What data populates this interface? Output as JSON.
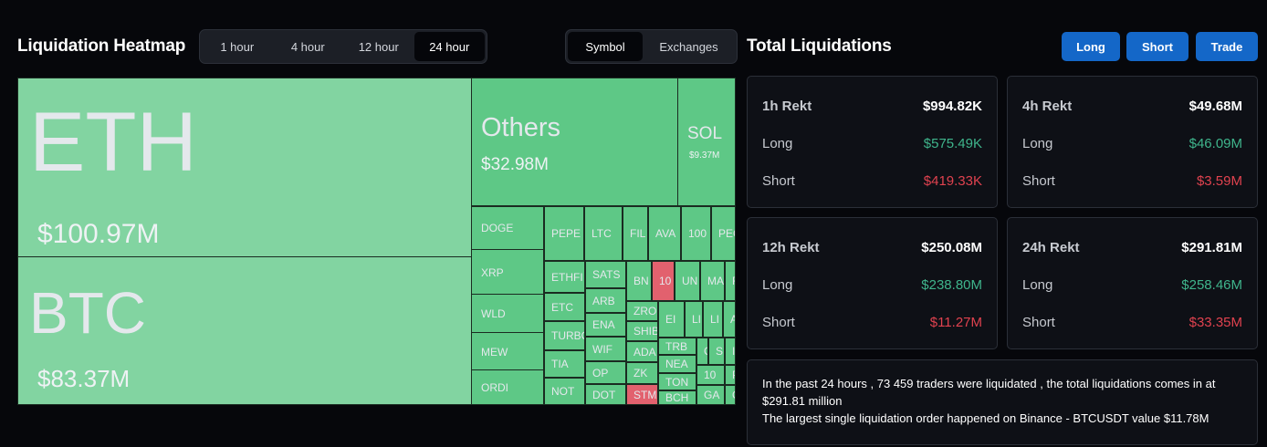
{
  "heatmap": {
    "title": "Liquidation Heatmap",
    "time_ranges": [
      "1 hour",
      "4 hour",
      "12 hour",
      "24 hour"
    ],
    "selected_time_range": "24 hour",
    "modes": [
      "Symbol",
      "Exchanges"
    ],
    "selected_mode": "Symbol",
    "tiles": {
      "eth": {
        "symbol": "ETH",
        "value": "$100.97M"
      },
      "btc": {
        "symbol": "BTC",
        "value": "$83.37M"
      },
      "others": {
        "symbol": "Others",
        "value": "$32.98M"
      },
      "sol": {
        "symbol": "SOL",
        "value": "$9.37M"
      },
      "small": [
        {
          "symbol": "DOGE",
          "color": "green"
        },
        {
          "symbol": "XRP",
          "color": "green"
        },
        {
          "symbol": "WLD",
          "color": "green"
        },
        {
          "symbol": "MEW",
          "color": "green"
        },
        {
          "symbol": "ORDI",
          "color": "green"
        },
        {
          "symbol": "PEPE",
          "color": "green"
        },
        {
          "symbol": "LTC",
          "color": "green"
        },
        {
          "symbol": "FIL",
          "color": "green"
        },
        {
          "symbol": "AVA",
          "color": "green"
        },
        {
          "symbol": "100",
          "color": "green"
        },
        {
          "symbol": "PEC",
          "color": "green"
        },
        {
          "symbol": "ETHFI",
          "color": "green"
        },
        {
          "symbol": "SATS",
          "color": "green"
        },
        {
          "symbol": "BN",
          "color": "green"
        },
        {
          "symbol": "10",
          "color": "red"
        },
        {
          "symbol": "UN",
          "color": "green"
        },
        {
          "symbol": "MA",
          "color": "green"
        },
        {
          "symbol": "FT",
          "color": "green"
        },
        {
          "symbol": "ETC",
          "color": "green"
        },
        {
          "symbol": "ARB",
          "color": "green"
        },
        {
          "symbol": "TURBO",
          "color": "green"
        },
        {
          "symbol": "ENA",
          "color": "green"
        },
        {
          "symbol": "ZRO",
          "color": "green"
        },
        {
          "symbol": "EI",
          "color": "green"
        },
        {
          "symbol": "LI",
          "color": "green"
        },
        {
          "symbol": "LI",
          "color": "green"
        },
        {
          "symbol": "A",
          "color": "green"
        },
        {
          "symbol": "SHIB",
          "color": "green"
        },
        {
          "symbol": "TIA",
          "color": "green"
        },
        {
          "symbol": "WIF",
          "color": "green"
        },
        {
          "symbol": "ADA",
          "color": "green"
        },
        {
          "symbol": "TRB",
          "color": "green"
        },
        {
          "symbol": "C",
          "color": "green"
        },
        {
          "symbol": "S",
          "color": "green"
        },
        {
          "symbol": "I",
          "color": "green"
        },
        {
          "symbol": "NOT",
          "color": "green"
        },
        {
          "symbol": "OP",
          "color": "green"
        },
        {
          "symbol": "ZK",
          "color": "green"
        },
        {
          "symbol": "NEA",
          "color": "green"
        },
        {
          "symbol": "TON",
          "color": "green"
        },
        {
          "symbol": "10",
          "color": "green"
        },
        {
          "symbol": "PE",
          "color": "green"
        },
        {
          "symbol": "DOT",
          "color": "green"
        },
        {
          "symbol": "STMX",
          "color": "red"
        },
        {
          "symbol": "BCH",
          "color": "green"
        },
        {
          "symbol": "GA",
          "color": "green"
        },
        {
          "symbol": "OI",
          "color": "green"
        }
      ]
    }
  },
  "totals": {
    "title": "Total Liquidations",
    "buttons": {
      "long": "Long",
      "short": "Short",
      "trade": "Trade"
    },
    "long_label": "Long",
    "short_label": "Short",
    "cards": [
      {
        "label": "1h Rekt",
        "total": "$994.82K",
        "long": "$575.49K",
        "short": "$419.33K"
      },
      {
        "label": "4h Rekt",
        "total": "$49.68M",
        "long": "$46.09M",
        "short": "$3.59M"
      },
      {
        "label": "12h Rekt",
        "total": "$250.08M",
        "long": "$238.80M",
        "short": "$11.27M"
      },
      {
        "label": "24h Rekt",
        "total": "$291.81M",
        "long": "$258.46M",
        "short": "$33.35M"
      }
    ]
  },
  "summary": {
    "line1": "In the past 24 hours , 73 459 traders were liquidated , the total liquidations comes in at $291.81 million",
    "line2": "The largest single liquidation order happened on Binance - BTCUSDT value $11.78M"
  },
  "colors": {
    "tile_green": "#5ec886",
    "tile_light": "#82d4a1",
    "tile_red": "#e2616e",
    "positive": "#3fb58c",
    "negative": "#e0424f",
    "accent_button": "#1467c8"
  }
}
